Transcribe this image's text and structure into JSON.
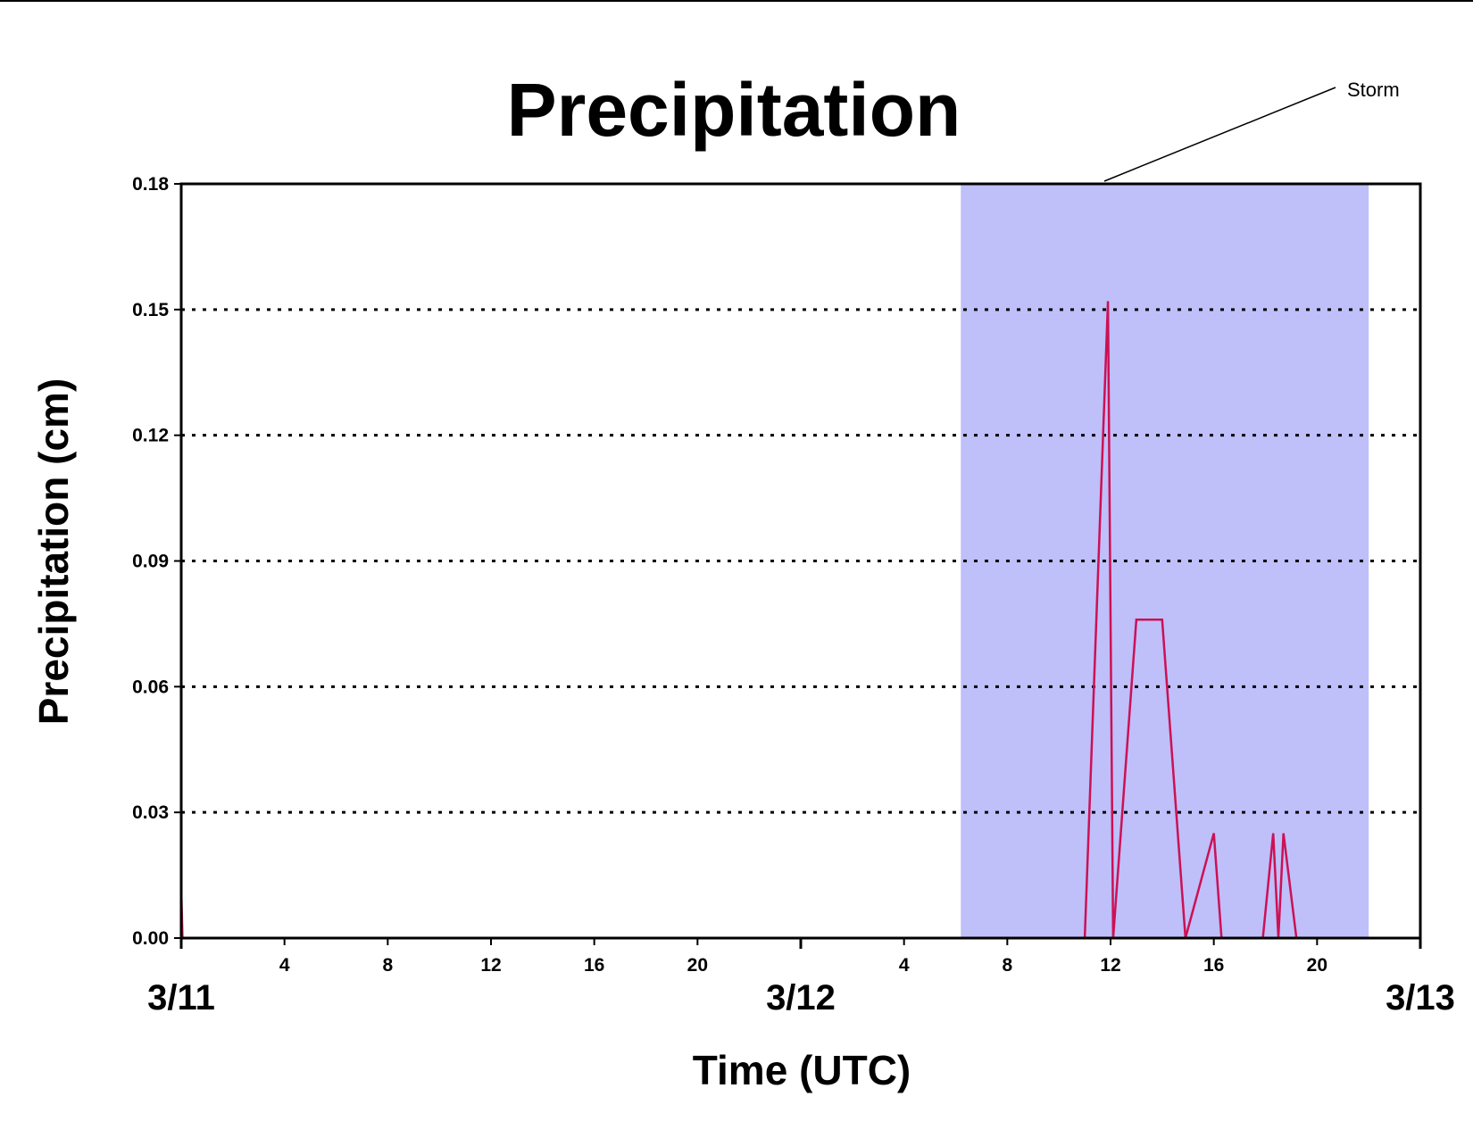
{
  "chart_data": {
    "type": "line",
    "title": "Precipitation",
    "xlabel": "Time (UTC)",
    "ylabel": "Precipitation (cm)",
    "xlim": [
      0,
      48
    ],
    "ylim": [
      0,
      0.18
    ],
    "yticks": [
      "0.00",
      "0.03",
      "0.06",
      "0.09",
      "0.12",
      "0.15",
      "0.18"
    ],
    "ytick_values": [
      0,
      0.03,
      0.06,
      0.09,
      0.12,
      0.15,
      0.18
    ],
    "x_hour_ticks": [
      {
        "x": 4,
        "label": "4"
      },
      {
        "x": 8,
        "label": "8"
      },
      {
        "x": 12,
        "label": "12"
      },
      {
        "x": 16,
        "label": "16"
      },
      {
        "x": 20,
        "label": "20"
      },
      {
        "x": 28,
        "label": "4"
      },
      {
        "x": 32,
        "label": "8"
      },
      {
        "x": 36,
        "label": "12"
      },
      {
        "x": 40,
        "label": "16"
      },
      {
        "x": 44,
        "label": "20"
      }
    ],
    "x_date_ticks": [
      {
        "x": 0,
        "label": "3/11"
      },
      {
        "x": 24,
        "label": "3/12"
      },
      {
        "x": 48,
        "label": "3/13"
      }
    ],
    "grid": {
      "horizontal": true,
      "style": "dotted"
    },
    "shaded_region": {
      "x_start": 30.2,
      "x_end": 46.0,
      "color": "#bfbffa",
      "label": "Storm"
    },
    "line_color": "#cc1155",
    "series": [
      {
        "points": [
          [
            0,
            0.012
          ],
          [
            0.05,
            0
          ],
          [
            35.0,
            0
          ],
          [
            35.9,
            0.152
          ],
          [
            36.1,
            0
          ],
          [
            37.0,
            0.076
          ],
          [
            38.0,
            0.076
          ],
          [
            38.9,
            0
          ],
          [
            40.0,
            0.025
          ],
          [
            40.3,
            0
          ],
          [
            41.9,
            0
          ],
          [
            42.3,
            0.025
          ],
          [
            42.5,
            0
          ],
          [
            42.7,
            0.025
          ],
          [
            43.2,
            0
          ],
          [
            48,
            0
          ]
        ]
      }
    ]
  }
}
